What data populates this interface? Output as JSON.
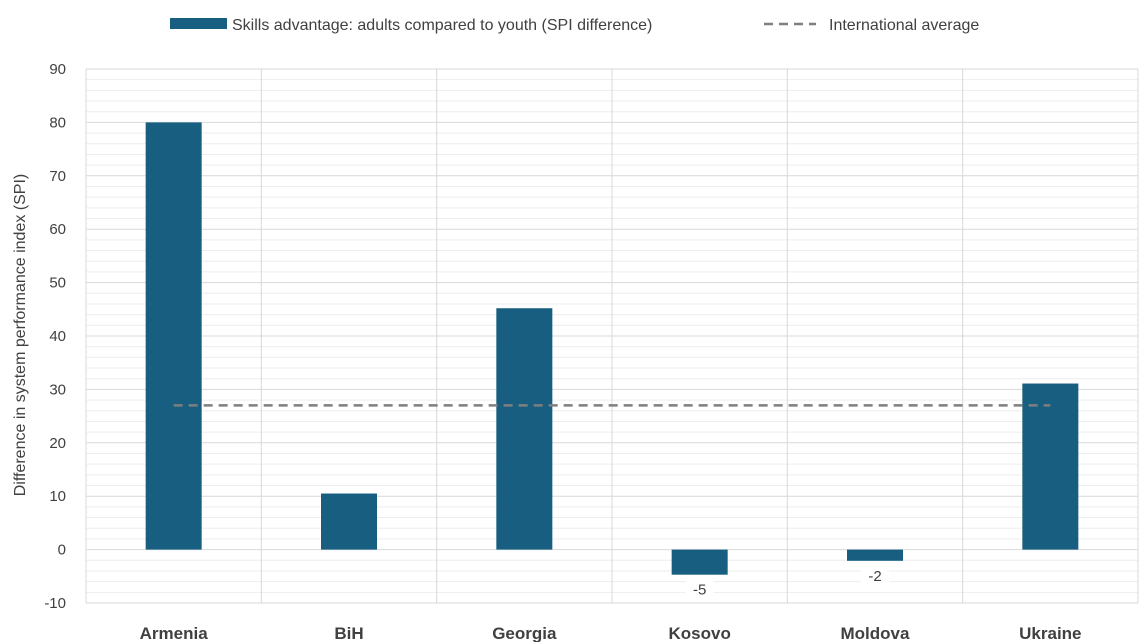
{
  "chart_data": {
    "type": "bar",
    "categories": [
      "Armenia",
      "BiH",
      "Georgia",
      "Kosovo",
      "Moldova",
      "Ukraine"
    ],
    "series": [
      {
        "name": "Skills advantage: adults compared to youth (SPI difference)",
        "values": [
          80,
          10.5,
          45.2,
          -4.7,
          -2.1,
          31.1
        ],
        "color": "#175E80"
      },
      {
        "name": "International average",
        "type": "line",
        "style": "dashed",
        "values": [
          27,
          27,
          27,
          27,
          27,
          27
        ],
        "color": "#7F7F7F"
      }
    ],
    "data_labels": {
      "Kosovo": "-5",
      "Moldova": "-2"
    },
    "ylabel": "Difference in system performance index (SPI)",
    "xlabel": "",
    "ylim": [
      -10,
      90
    ],
    "yticks": [
      -10,
      0,
      10,
      20,
      30,
      40,
      50,
      60,
      70,
      80,
      90
    ],
    "grid": true,
    "minor_grid": true,
    "legend": "top-center"
  }
}
